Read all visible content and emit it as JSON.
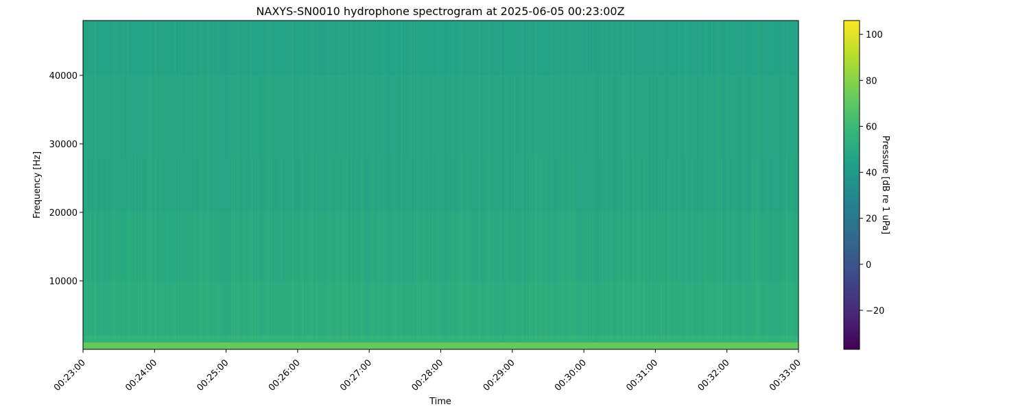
{
  "chart_data": {
    "type": "heatmap",
    "title": "NAXYS-SN0010 hydrophone spectrogram at 2025-06-05 00:23:00Z",
    "xlabel": "Time",
    "ylabel": "Frequency [Hz]",
    "colorbar_label": "Pressure [dB re 1 uPa]",
    "colormap": "viridis",
    "xlim": [
      "00:23:00",
      "00:33:00"
    ],
    "ylim": [
      0,
      48000
    ],
    "clim": [
      -37,
      106
    ],
    "x_ticks": [
      "00:23:00",
      "00:24:00",
      "00:25:00",
      "00:26:00",
      "00:27:00",
      "00:28:00",
      "00:29:00",
      "00:30:00",
      "00:31:00",
      "00:32:00",
      "00:33:00"
    ],
    "y_ticks": [
      10000,
      20000,
      30000,
      40000
    ],
    "colorbar_ticks": [
      -20,
      0,
      20,
      40,
      60,
      80,
      100
    ],
    "grid": false,
    "frequency_bands": [
      {
        "from_hz": 0,
        "to_hz": 1000,
        "level_db": 72
      },
      {
        "from_hz": 1000,
        "to_hz": 2000,
        "level_db": 56
      },
      {
        "from_hz": 2000,
        "to_hz": 10000,
        "level_db": 52
      },
      {
        "from_hz": 10000,
        "to_hz": 20000,
        "level_db": 50
      },
      {
        "from_hz": 20000,
        "to_hz": 40000,
        "level_db": 48
      },
      {
        "from_hz": 40000,
        "to_hz": 48000,
        "level_db": 46
      }
    ]
  }
}
